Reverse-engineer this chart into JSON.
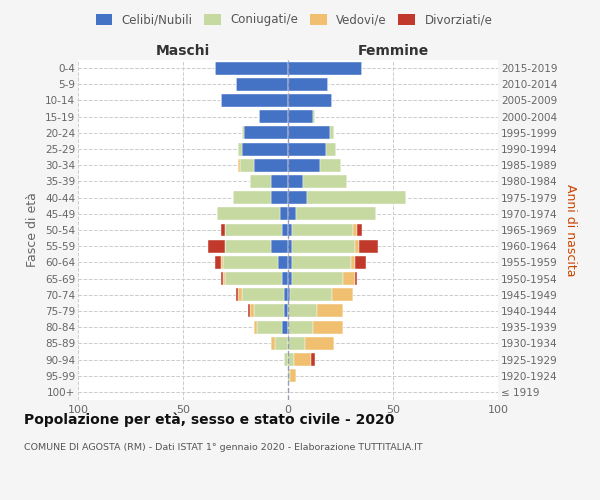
{
  "age_groups": [
    "100+",
    "95-99",
    "90-94",
    "85-89",
    "80-84",
    "75-79",
    "70-74",
    "65-69",
    "60-64",
    "55-59",
    "50-54",
    "45-49",
    "40-44",
    "35-39",
    "30-34",
    "25-29",
    "20-24",
    "15-19",
    "10-14",
    "5-9",
    "0-4"
  ],
  "birth_years": [
    "≤ 1919",
    "1920-1924",
    "1925-1929",
    "1930-1934",
    "1935-1939",
    "1940-1944",
    "1945-1949",
    "1950-1954",
    "1955-1959",
    "1960-1964",
    "1965-1969",
    "1970-1974",
    "1975-1979",
    "1980-1984",
    "1985-1989",
    "1990-1994",
    "1995-1999",
    "2000-2004",
    "2005-2009",
    "2010-2014",
    "2015-2019"
  ],
  "male": {
    "celibi": [
      0,
      0,
      0,
      0,
      3,
      2,
      2,
      3,
      5,
      8,
      3,
      4,
      8,
      8,
      16,
      22,
      21,
      14,
      32,
      25,
      35
    ],
    "coniugati": [
      0,
      0,
      2,
      6,
      12,
      14,
      20,
      27,
      26,
      22,
      27,
      30,
      18,
      10,
      7,
      2,
      1,
      0,
      0,
      0,
      0
    ],
    "vedovi": [
      0,
      0,
      0,
      2,
      1,
      2,
      2,
      1,
      1,
      0,
      0,
      0,
      0,
      0,
      1,
      0,
      0,
      0,
      0,
      0,
      0
    ],
    "divorziati": [
      0,
      0,
      0,
      0,
      0,
      1,
      1,
      1,
      3,
      8,
      2,
      0,
      0,
      0,
      0,
      0,
      0,
      0,
      0,
      0,
      0
    ]
  },
  "female": {
    "nubili": [
      0,
      0,
      0,
      0,
      0,
      0,
      1,
      2,
      2,
      2,
      2,
      4,
      9,
      7,
      15,
      18,
      20,
      12,
      21,
      19,
      35
    ],
    "coniugate": [
      0,
      1,
      3,
      8,
      12,
      14,
      20,
      24,
      28,
      30,
      29,
      38,
      47,
      21,
      10,
      5,
      2,
      1,
      0,
      0,
      0
    ],
    "vedove": [
      0,
      3,
      8,
      14,
      14,
      12,
      10,
      6,
      2,
      2,
      2,
      0,
      0,
      0,
      0,
      0,
      0,
      0,
      0,
      0,
      0
    ],
    "divorziate": [
      0,
      0,
      2,
      0,
      0,
      0,
      0,
      1,
      5,
      9,
      2,
      0,
      0,
      0,
      0,
      0,
      0,
      0,
      0,
      0,
      0
    ]
  },
  "color_celibi": "#4472c4",
  "color_coniugati": "#c6d9a0",
  "color_vedovi": "#f0c070",
  "color_divorziati": "#c0392b",
  "title": "Popolazione per età, sesso e stato civile - 2020",
  "subtitle": "COMUNE DI AGOSTA (RM) - Dati ISTAT 1° gennaio 2020 - Elaborazione TUTTITALIA.IT",
  "xlabel_maschi": "Maschi",
  "xlabel_femmine": "Femmine",
  "ylabel_left": "Fasce di età",
  "ylabel_right": "Anni di nascita",
  "xlim": 100,
  "background_color": "#f5f5f5",
  "plot_bg_color": "#ffffff"
}
